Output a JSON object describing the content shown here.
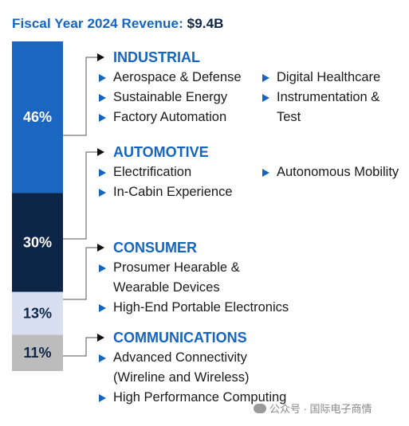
{
  "header": {
    "title_prefix": "Fiscal Year 2024 Revenue:",
    "title_value": "$9.4B"
  },
  "chart_data": {
    "type": "bar",
    "stacked": true,
    "categories": [
      "INDUSTRIAL",
      "AUTOMOTIVE",
      "CONSUMER",
      "COMMUNICATIONS"
    ],
    "values": [
      46,
      30,
      13,
      11
    ],
    "value_labels": [
      "46%",
      "30%",
      "13%",
      "11%"
    ],
    "colors": [
      "#1a66c1",
      "#0d2547",
      "#d7dff0",
      "#bcbcbc"
    ],
    "label_colors": [
      "#ffffff",
      "#ffffff",
      "#0d2547",
      "#0d2547"
    ],
    "title": "Fiscal Year 2024 Revenue: $9.4B"
  },
  "categories": [
    {
      "title": "INDUSTRIAL",
      "items": [
        "Aerospace & Defense",
        "Sustainable Energy",
        "Factory Automation",
        "Digital Healthcare",
        "Instrumentation &\nTest"
      ]
    },
    {
      "title": "AUTOMOTIVE",
      "items": [
        "Electrification",
        "In-Cabin Experience",
        "Autonomous Mobility"
      ]
    },
    {
      "title": "CONSUMER",
      "items": [
        "Prosumer Hearable &\nWearable Devices",
        "High-End Portable Electronics"
      ]
    },
    {
      "title": "COMMUNICATIONS",
      "items": [
        "Advanced Connectivity\n(Wireline and Wireless)",
        "High Performance Computing"
      ]
    }
  ],
  "watermark": "公众号 · 国际电子商情"
}
